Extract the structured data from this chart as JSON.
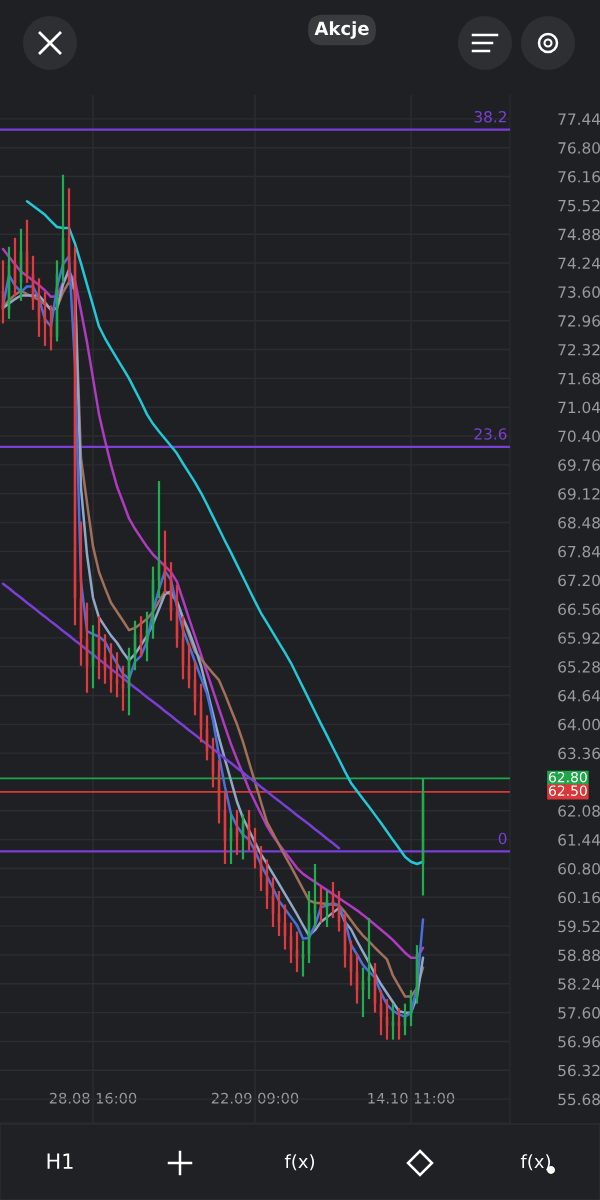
{
  "chart_data": {
    "type": "candlestick",
    "categories": [
      null,
      null,
      null,
      null,
      null,
      null,
      null,
      null,
      null,
      null,
      null,
      null,
      null,
      null,
      null,
      "28.08 16:00",
      null,
      null,
      null,
      null,
      null,
      null,
      null,
      null,
      null,
      null,
      null,
      null,
      null,
      null,
      null,
      null,
      null,
      null,
      null,
      null,
      null,
      null,
      null,
      null,
      null,
      null,
      "22.09 09:00",
      null,
      null,
      null,
      null,
      null,
      null,
      null,
      null,
      null,
      null,
      null,
      null,
      null,
      null,
      null,
      null,
      null,
      null,
      null,
      null,
      null,
      null,
      null,
      null,
      null,
      "14.10 11:00",
      null,
      null,
      null,
      null,
      null,
      null,
      null,
      null,
      null,
      null,
      null,
      null,
      null,
      null,
      null,
      null
    ],
    "ohlc": [
      [
        73.6,
        74.3,
        72.9,
        73.2
      ],
      [
        73.2,
        74.6,
        73.0,
        74.2
      ],
      [
        74.2,
        74.8,
        73.5,
        73.8
      ],
      [
        73.8,
        75.0,
        73.4,
        74.5
      ],
      [
        74.5,
        75.2,
        73.8,
        74.0
      ],
      [
        74.0,
        74.4,
        73.2,
        73.4
      ],
      [
        73.4,
        73.9,
        72.6,
        73.0
      ],
      [
        73.0,
        73.6,
        72.4,
        72.9
      ],
      [
        72.9,
        73.3,
        72.3,
        72.6
      ],
      [
        72.6,
        74.3,
        72.5,
        74.0
      ],
      [
        74.0,
        76.2,
        73.8,
        74.8
      ],
      [
        74.8,
        75.9,
        73.8,
        74.3
      ],
      [
        74.3,
        74.6,
        66.2,
        66.8
      ],
      [
        66.8,
        68.5,
        65.3,
        65.9
      ],
      [
        65.9,
        66.7,
        64.7,
        65.3
      ],
      [
        65.3,
        66.2,
        64.8,
        65.9
      ],
      [
        65.9,
        66.4,
        65.0,
        65.5
      ],
      [
        65.5,
        66.0,
        64.9,
        65.2
      ],
      [
        65.2,
        65.8,
        64.7,
        65.0
      ],
      [
        65.0,
        65.6,
        64.6,
        64.9
      ],
      [
        64.9,
        65.3,
        64.3,
        64.8
      ],
      [
        64.8,
        65.7,
        64.2,
        65.5
      ],
      [
        65.5,
        66.3,
        65.2,
        66.0
      ],
      [
        66.0,
        66.4,
        65.5,
        65.8
      ],
      [
        65.8,
        66.5,
        65.4,
        66.1
      ],
      [
        66.1,
        67.5,
        65.9,
        67.2
      ],
      [
        67.2,
        69.4,
        66.8,
        67.6
      ],
      [
        67.6,
        68.3,
        66.9,
        67.3
      ],
      [
        67.3,
        67.6,
        66.3,
        66.5
      ],
      [
        66.5,
        67.1,
        65.7,
        65.9
      ],
      [
        65.9,
        66.4,
        65.0,
        65.3
      ],
      [
        65.3,
        65.8,
        64.8,
        65.0
      ],
      [
        65.0,
        65.4,
        64.2,
        64.5
      ],
      [
        64.5,
        64.9,
        63.6,
        63.9
      ],
      [
        63.9,
        64.2,
        63.2,
        63.4
      ],
      [
        63.4,
        63.7,
        62.6,
        62.9
      ],
      [
        62.9,
        63.2,
        61.8,
        62.1
      ],
      [
        62.1,
        62.5,
        60.9,
        61.4
      ],
      [
        61.4,
        62.0,
        60.9,
        61.7
      ],
      [
        61.7,
        62.1,
        61.1,
        61.5
      ],
      [
        61.5,
        62.0,
        61.0,
        61.8
      ],
      [
        61.8,
        62.1,
        61.2,
        61.4
      ],
      [
        61.4,
        61.7,
        60.8,
        61.0
      ],
      [
        61.0,
        61.3,
        60.3,
        60.6
      ],
      [
        60.6,
        61.0,
        59.9,
        60.2
      ],
      [
        60.2,
        60.6,
        59.5,
        59.8
      ],
      [
        59.8,
        60.3,
        59.3,
        59.6
      ],
      [
        59.6,
        60.0,
        59.0,
        59.3
      ],
      [
        59.3,
        59.6,
        58.7,
        59.0
      ],
      [
        59.0,
        59.4,
        58.5,
        58.8
      ],
      [
        58.8,
        59.2,
        58.4,
        58.9
      ],
      [
        58.9,
        60.3,
        58.7,
        59.8
      ],
      [
        59.8,
        60.9,
        59.5,
        60.0
      ],
      [
        60.0,
        60.4,
        59.6,
        59.9
      ],
      [
        59.9,
        60.3,
        59.5,
        60.1
      ],
      [
        60.1,
        60.5,
        59.7,
        60.0
      ],
      [
        60.0,
        60.3,
        59.4,
        59.6
      ],
      [
        59.6,
        59.8,
        58.6,
        58.9
      ],
      [
        58.9,
        59.2,
        58.2,
        58.5
      ],
      [
        58.5,
        58.9,
        57.8,
        58.1
      ],
      [
        58.1,
        58.6,
        57.5,
        58.3
      ],
      [
        58.3,
        59.7,
        57.9,
        58.4
      ],
      [
        58.4,
        58.7,
        57.6,
        57.8
      ],
      [
        57.8,
        58.1,
        57.1,
        57.5
      ],
      [
        57.5,
        57.9,
        57.0,
        57.3
      ],
      [
        57.3,
        57.8,
        57.0,
        57.4
      ],
      [
        57.4,
        57.7,
        57.0,
        57.3
      ],
      [
        57.3,
        57.8,
        57.1,
        57.5
      ],
      [
        57.5,
        58.1,
        57.3,
        58.0
      ],
      [
        58.0,
        59.1,
        57.8,
        58.9
      ],
      [
        60.9,
        62.8,
        60.2,
        62.5
      ],
      null,
      null,
      null,
      null,
      null,
      null,
      null,
      null,
      null,
      null,
      null,
      null,
      null,
      null
    ],
    "colors": [
      "#e03a3e",
      "#22ab4f",
      "#e03a3e",
      "#22ab4f",
      "#e03a3e",
      "#e03a3e",
      "#e03a3e",
      "#e03a3e",
      "#e03a3e",
      "#22ab4f",
      "#22ab4f",
      "#e03a3e",
      "#e03a3e",
      "#e03a3e",
      "#e03a3e",
      "#22ab4f",
      "#e03a3e",
      "#e03a3e",
      "#e03a3e",
      "#e03a3e",
      "#e03a3e",
      "#22ab4f",
      "#22ab4f",
      "#e03a3e",
      "#22ab4f",
      "#22ab4f",
      "#22ab4f",
      "#e03a3e",
      "#e03a3e",
      "#e03a3e",
      "#e03a3e",
      "#e03a3e",
      "#e03a3e",
      "#e03a3e",
      "#e03a3e",
      "#e03a3e",
      "#e03a3e",
      "#e03a3e",
      "#22ab4f",
      "#e03a3e",
      "#22ab4f",
      "#e03a3e",
      "#e03a3e",
      "#e03a3e",
      "#e03a3e",
      "#e03a3e",
      "#e03a3e",
      "#e03a3e",
      "#e03a3e",
      "#e03a3e",
      "#22ab4f",
      "#22ab4f",
      "#22ab4f",
      "#e03a3e",
      "#22ab4f",
      "#e03a3e",
      "#e03a3e",
      "#e03a3e",
      "#e03a3e",
      "#e03a3e",
      "#22ab4f",
      "#22ab4f",
      "#e03a3e",
      "#e03a3e",
      "#e03a3e",
      "#22ab4f",
      "#e03a3e",
      "#22ab4f",
      "#22ab4f",
      "#22ab4f",
      "#22ab4f",
      null,
      null,
      null,
      null,
      null,
      null,
      null,
      null,
      null,
      null,
      null,
      null,
      null,
      null
    ],
    "series": [
      {
        "type": "line",
        "color": "#22c8d8",
        "values": [
          null,
          null,
          null,
          null,
          75.61,
          75.51,
          75.41,
          75.31,
          75.17,
          75.04,
          75.02,
          75.02,
          74.67,
          74.23,
          73.76,
          73.3,
          72.83,
          72.57,
          72.34,
          72.12,
          71.9,
          71.68,
          71.42,
          71.16,
          70.88,
          70.67,
          70.5,
          70.34,
          70.18,
          70.01,
          69.79,
          69.58,
          69.37,
          69.14,
          68.88,
          68.61,
          68.34,
          68.07,
          67.81,
          67.54,
          67.27,
          67.0,
          66.73,
          66.47,
          66.25,
          66.03,
          65.81,
          65.59,
          65.36,
          65.09,
          64.82,
          64.55,
          64.28,
          64.01,
          63.75,
          63.48,
          63.22,
          62.95,
          62.7,
          62.52,
          62.34,
          62.17,
          61.99,
          61.81,
          61.62,
          61.43,
          61.25,
          61.06,
          60.95,
          60.9,
          60.95,
          null,
          null,
          null,
          null,
          null,
          null,
          null,
          null,
          null,
          null,
          null,
          null,
          null,
          null
        ]
      },
      {
        "type": "line",
        "color": "#b03ac0",
        "values": [
          74.55,
          74.38,
          74.21,
          74.05,
          73.95,
          73.85,
          73.75,
          73.63,
          73.49,
          73.5,
          73.81,
          74.03,
          73.85,
          73.18,
          72.48,
          71.68,
          70.88,
          70.3,
          69.76,
          69.28,
          68.93,
          68.57,
          68.34,
          68.14,
          67.94,
          67.77,
          67.64,
          67.51,
          67.38,
          67.16,
          66.76,
          66.35,
          65.95,
          65.55,
          65.15,
          64.75,
          64.35,
          63.95,
          63.56,
          63.22,
          62.89,
          62.56,
          62.28,
          62.01,
          61.74,
          61.52,
          61.34,
          61.16,
          60.99,
          60.81,
          60.68,
          60.59,
          60.5,
          60.41,
          60.32,
          60.23,
          60.14,
          60.05,
          59.96,
          59.87,
          59.77,
          59.66,
          59.55,
          59.44,
          59.33,
          59.21,
          59.07,
          58.93,
          58.82,
          58.82,
          59.04,
          null,
          null,
          null,
          null,
          null,
          null,
          null,
          null,
          null,
          null,
          null,
          null,
          null,
          null
        ]
      },
      {
        "type": "line",
        "color": "#a0705a",
        "values": [
          73.28,
          73.41,
          73.54,
          73.62,
          73.55,
          73.49,
          73.42,
          73.32,
          73.23,
          73.25,
          73.59,
          73.82,
          73.63,
          69.9,
          68.92,
          67.95,
          67.38,
          67.03,
          66.7,
          66.5,
          66.3,
          66.09,
          66.14,
          66.24,
          66.34,
          66.5,
          66.73,
          66.95,
          66.88,
          66.72,
          66.35,
          65.98,
          65.61,
          65.45,
          65.29,
          65.13,
          64.98,
          64.67,
          64.33,
          64.0,
          63.61,
          63.16,
          62.72,
          62.27,
          61.83,
          61.58,
          61.33,
          61.08,
          60.84,
          60.59,
          60.34,
          60.09,
          60.04,
          60.03,
          60.01,
          60.0,
          59.98,
          59.83,
          59.65,
          59.47,
          59.31,
          59.18,
          59.04,
          58.91,
          58.78,
          58.42,
          58.19,
          57.96,
          57.96,
          58.15,
          58.6,
          null,
          null,
          null,
          null,
          null,
          null,
          null,
          null,
          null,
          null,
          null,
          null,
          null,
          null
        ]
      },
      {
        "type": "line",
        "color": "#8fa8c8",
        "values": [
          73.24,
          73.34,
          73.44,
          73.52,
          73.52,
          73.52,
          73.52,
          73.37,
          73.19,
          73.24,
          73.76,
          74.1,
          73.63,
          69.25,
          67.77,
          66.81,
          66.37,
          66.17,
          65.97,
          65.81,
          65.6,
          65.42,
          65.56,
          65.76,
          65.96,
          66.23,
          66.56,
          66.89,
          66.95,
          66.73,
          66.36,
          66.06,
          65.7,
          65.3,
          64.76,
          64.23,
          63.7,
          63.22,
          62.75,
          62.28,
          61.92,
          61.65,
          61.38,
          61.12,
          60.9,
          60.68,
          60.46,
          60.23,
          60.01,
          59.78,
          59.54,
          59.31,
          59.43,
          59.62,
          59.72,
          59.82,
          59.92,
          59.61,
          59.45,
          59.19,
          58.95,
          58.71,
          58.46,
          58.23,
          58.03,
          57.83,
          57.63,
          57.6,
          57.6,
          57.95,
          58.82,
          null,
          null,
          null,
          null,
          null,
          null,
          null,
          null,
          null,
          null,
          null,
          null,
          null,
          null
        ]
      },
      {
        "type": "line",
        "color": "#4a6fdc",
        "values": [
          73.29,
          73.97,
          73.74,
          73.6,
          73.72,
          73.72,
          73.45,
          72.99,
          72.83,
          73.71,
          74.21,
          74.39,
          71.97,
          67.17,
          66.07,
          66.0,
          65.95,
          65.84,
          65.57,
          65.35,
          65.12,
          65.01,
          65.39,
          65.52,
          65.84,
          66.51,
          67.0,
          67.4,
          67.2,
          66.61,
          66.1,
          65.75,
          65.39,
          65.03,
          64.68,
          64.09,
          63.3,
          62.61,
          62.01,
          61.74,
          61.55,
          61.44,
          61.19,
          60.88,
          60.63,
          60.36,
          60.08,
          59.9,
          59.72,
          59.54,
          59.24,
          59.26,
          59.54,
          59.94,
          59.98,
          60.03,
          59.98,
          59.64,
          59.11,
          58.89,
          58.66,
          58.51,
          58.38,
          58.04,
          57.78,
          57.64,
          57.56,
          57.51,
          57.6,
          58.17,
          59.67,
          null,
          null,
          null,
          null,
          null,
          null,
          null,
          null,
          null,
          null,
          null,
          null,
          null,
          null
        ]
      },
      {
        "type": "line",
        "color": "#7a3fd6",
        "values": [
          67.12,
          67.02,
          66.91,
          66.81,
          66.7,
          66.6,
          66.49,
          66.39,
          66.28,
          66.18,
          66.07,
          65.97,
          65.86,
          65.76,
          65.65,
          65.55,
          65.44,
          65.34,
          65.23,
          65.13,
          65.02,
          64.92,
          64.81,
          64.71,
          64.6,
          64.5,
          64.4,
          64.29,
          64.19,
          64.08,
          63.98,
          63.87,
          63.77,
          63.66,
          63.56,
          63.45,
          63.35,
          63.24,
          63.14,
          63.03,
          62.93,
          62.82,
          62.72,
          62.61,
          62.51,
          62.4,
          62.3,
          62.19,
          62.09,
          61.98,
          61.88,
          61.78,
          61.67,
          61.57,
          61.46,
          61.36,
          61.25,
          null,
          null,
          null,
          null,
          null,
          null,
          null,
          null,
          null,
          null,
          null,
          null,
          null,
          null,
          null,
          null,
          null,
          null,
          null,
          null,
          null,
          null,
          null,
          null,
          null,
          null,
          null,
          null
        ]
      }
    ],
    "ref_lines": [
      {
        "axis": "y",
        "value": 77.2,
        "color": "#7a3fd6"
      },
      {
        "axis": "y",
        "value": 70.16,
        "color": "#7a3fd6"
      },
      {
        "axis": "y",
        "value": 61.18,
        "color": "#7a3fd6"
      },
      {
        "axis": "y",
        "value": 62.8,
        "label": "62.80",
        "color": "#1fa64a"
      },
      {
        "axis": "y",
        "value": 62.5,
        "label": "62.50",
        "color": "#d9383a"
      }
    ],
    "ylim": [
      55.15,
      77.97
    ],
    "yticks": [
      77.44,
      {
        "value": 76.8,
        "label": "76.80"
      },
      76.16,
      75.52,
      74.88,
      74.24,
      {
        "value": 73.6,
        "label": "73.60"
      },
      72.96,
      72.32,
      71.68,
      71.04,
      {
        "value": 70.4,
        "label": "70.40"
      },
      69.76,
      69.12,
      68.48,
      67.84,
      {
        "value": 67.2,
        "label": "67.20"
      },
      66.56,
      65.92,
      65.28,
      64.64,
      {
        "value": 64.0,
        "label": "64.00"
      },
      63.36,
      62.08,
      61.44,
      {
        "value": 60.8,
        "label": "60.80"
      },
      60.16,
      59.52,
      58.88,
      58.24,
      {
        "value": 57.6,
        "label": "57.60"
      },
      56.96,
      56.32,
      55.68
    ],
    "grid": true,
    "annotations": [
      "Akcje",
      "H1",
      "f(x)",
      "f(x)",
      {
        "text": "38.2",
        "y": 77.2
      },
      {
        "text": "23.6",
        "y": 70.16
      },
      {
        "text": "0",
        "y": 61.18
      }
    ]
  }
}
